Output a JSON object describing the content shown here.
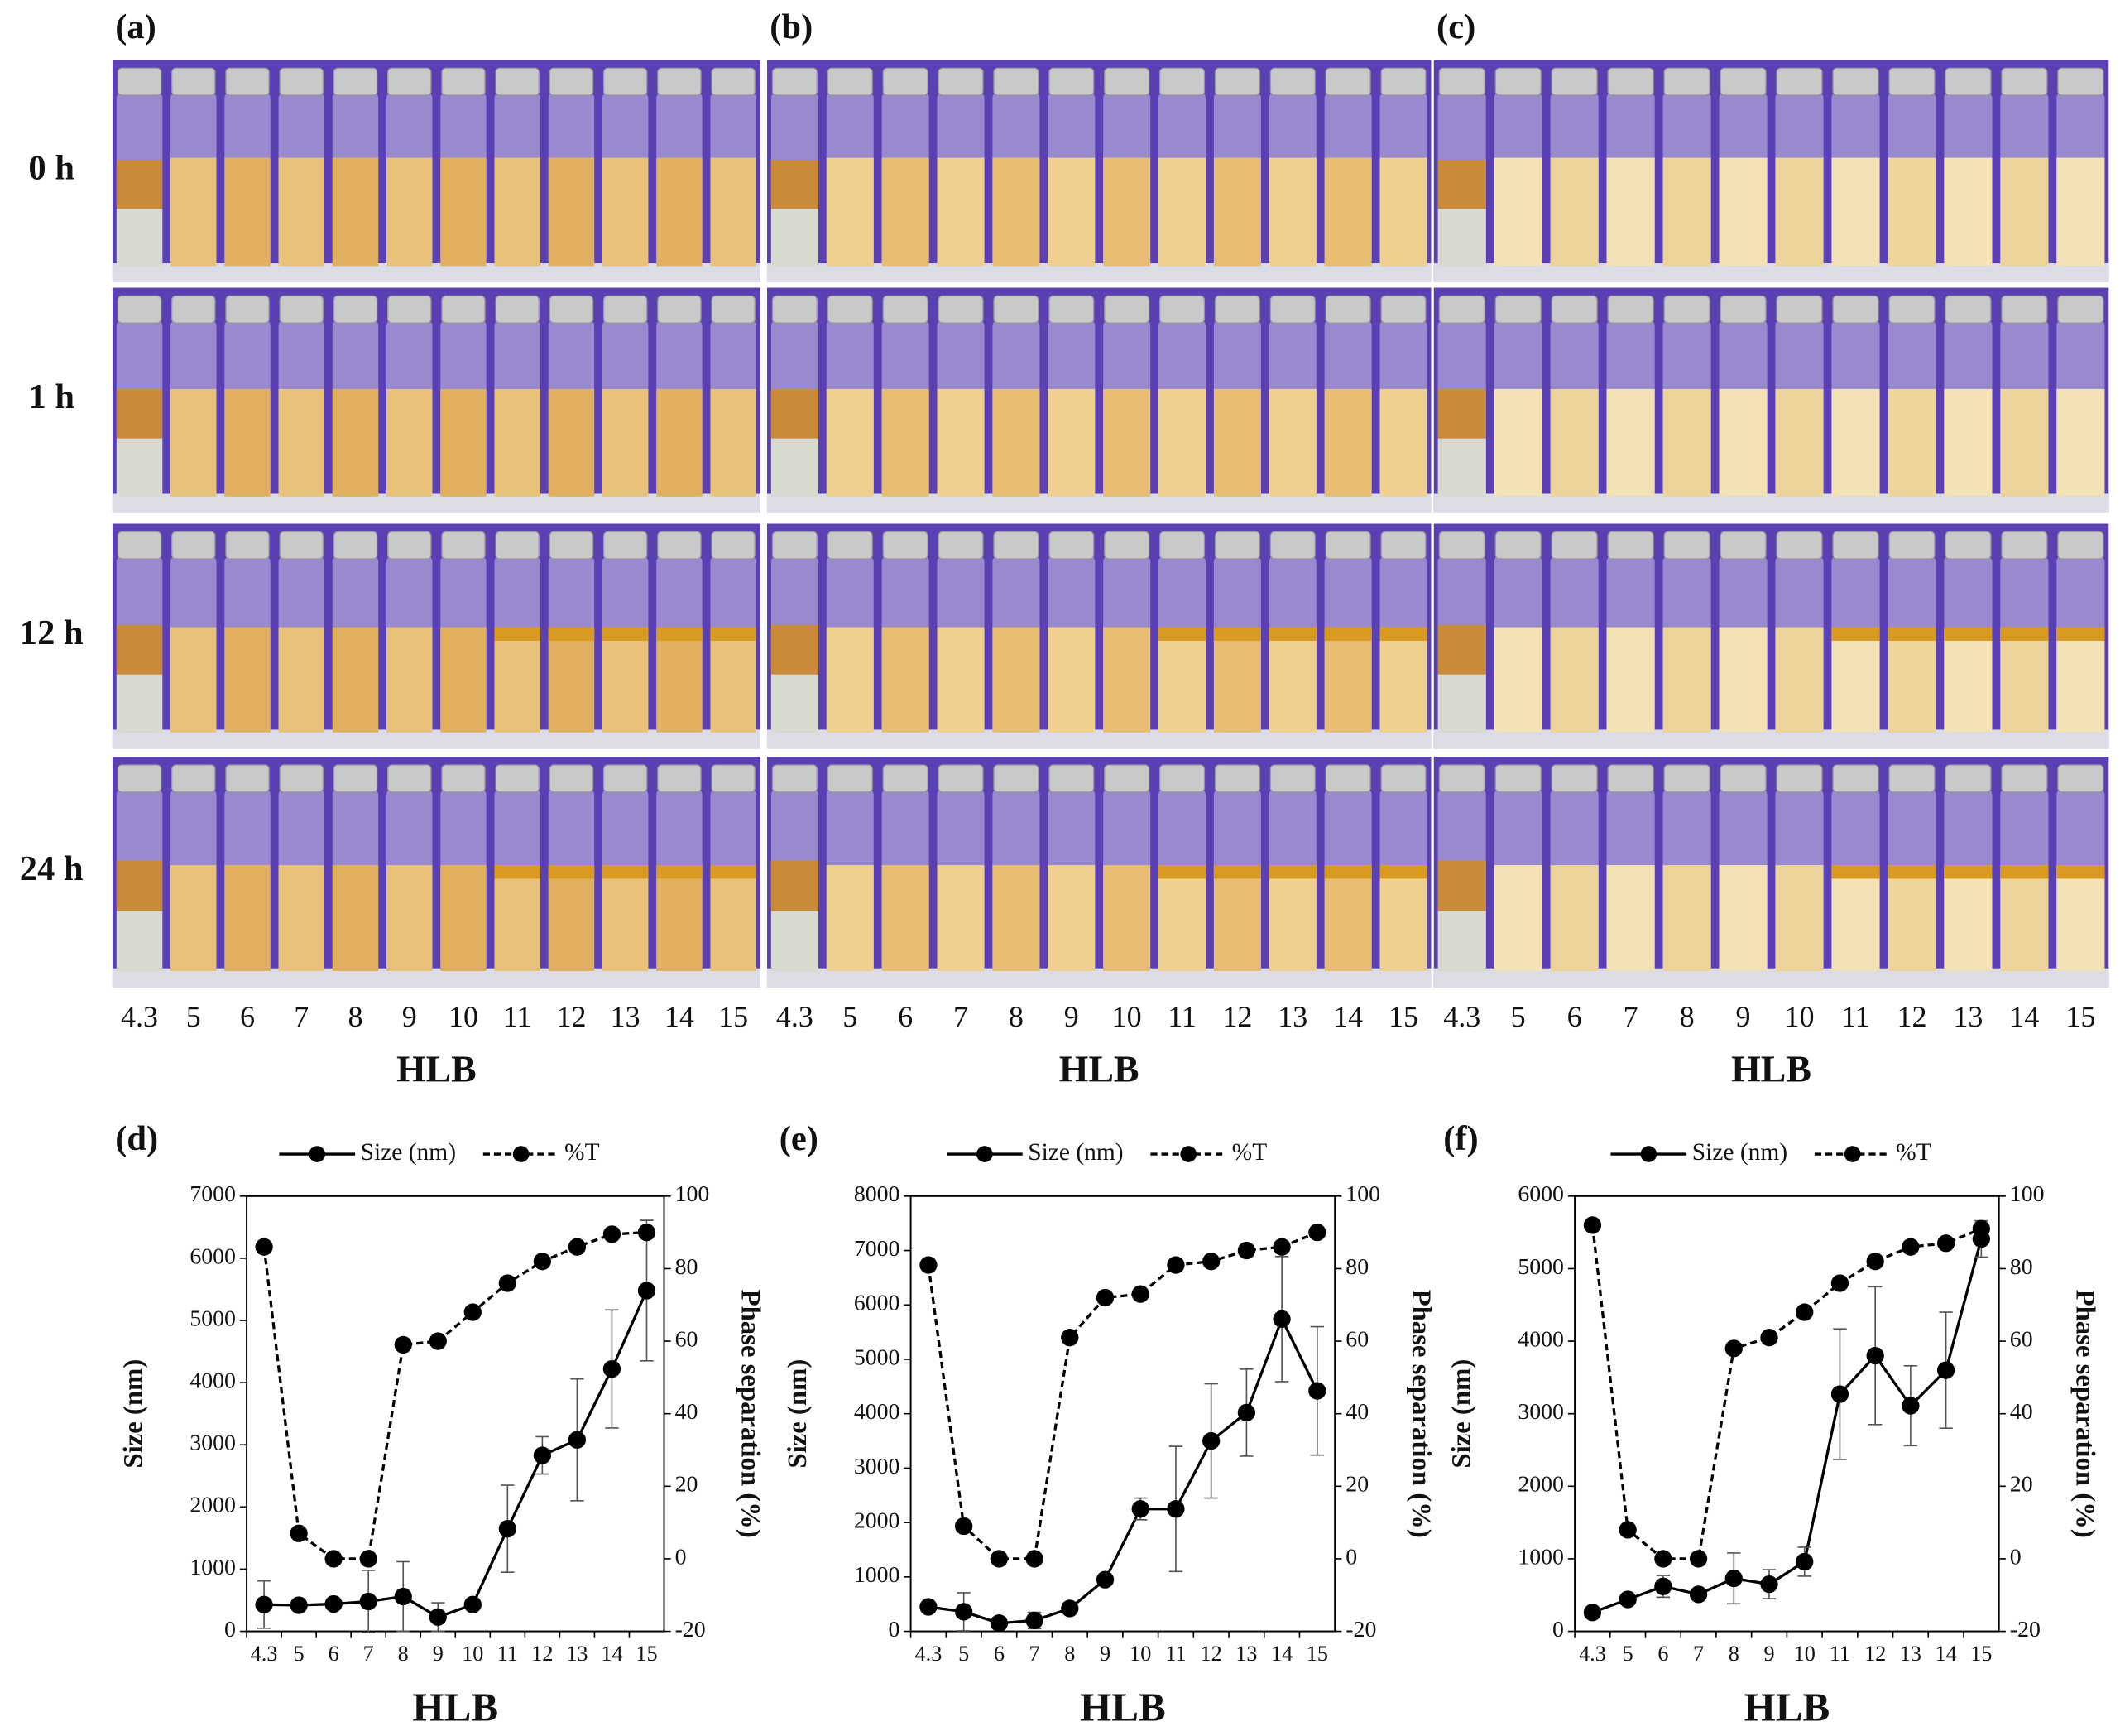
{
  "photos": {
    "panels": [
      "(a)",
      "(b)",
      "(c)"
    ],
    "rows": [
      "0 h",
      "1 h",
      "12 h",
      "24 h"
    ],
    "hlb_labels": [
      "4.3",
      "5",
      "6",
      "7",
      "8",
      "9",
      "10",
      "11",
      "12",
      "13",
      "14",
      "15"
    ],
    "xlabel": "HLB"
  },
  "chart_data": [
    {
      "type": "line",
      "label": "(d)",
      "categories": [
        "4.3",
        "5",
        "6",
        "7",
        "8",
        "9",
        "10",
        "11",
        "12",
        "13",
        "14",
        "15"
      ],
      "xlabel": "HLB",
      "ylabel": "Size (nm)",
      "y2label": "Phase separation (%)",
      "ylim": [
        0,
        7000
      ],
      "yticks": [
        0,
        1000,
        2000,
        3000,
        4000,
        5000,
        6000,
        7000
      ],
      "y2lim": [
        -20,
        100
      ],
      "y2ticks": [
        -20,
        0,
        20,
        40,
        60,
        80,
        100
      ],
      "series": [
        {
          "name": "Size (nm)",
          "color": "#000000",
          "dash": false,
          "values": [
            430,
            420,
            440,
            480,
            560,
            230,
            430,
            1650,
            2830,
            3080,
            4220,
            5480
          ],
          "errors": [
            380,
            30,
            50,
            500,
            560,
            230,
            30,
            700,
            300,
            980,
            950,
            1130
          ]
        },
        {
          "name": "%T",
          "color": "#000000",
          "dash": true,
          "axis": "y2",
          "values": [
            86,
            7,
            0,
            0,
            59,
            60,
            68,
            76,
            82,
            86,
            89.5,
            90
          ]
        }
      ]
    },
    {
      "type": "line",
      "label": "(e)",
      "categories": [
        "4.3",
        "5",
        "6",
        "7",
        "8",
        "9",
        "10",
        "11",
        "12",
        "13",
        "14",
        "15"
      ],
      "xlabel": "HLB",
      "ylabel": "Size (nm)",
      "y2label": "Phase separation (%)",
      "ylim": [
        0,
        8000
      ],
      "yticks": [
        0,
        1000,
        2000,
        3000,
        4000,
        5000,
        6000,
        7000,
        8000
      ],
      "y2lim": [
        -20,
        100
      ],
      "y2ticks": [
        -20,
        0,
        20,
        40,
        60,
        80,
        100
      ],
      "series": [
        {
          "name": "Size (nm)",
          "color": "#000000",
          "dash": false,
          "values": [
            450,
            360,
            150,
            200,
            420,
            950,
            2250,
            2250,
            3500,
            4020,
            5740,
            4420
          ],
          "errors": [
            50,
            350,
            100,
            150,
            80,
            50,
            200,
            1150,
            1050,
            800,
            1150,
            1180
          ]
        },
        {
          "name": "%T",
          "color": "#000000",
          "dash": true,
          "axis": "y2",
          "values": [
            81,
            9,
            0,
            0,
            61,
            72,
            73,
            81,
            82,
            85,
            86,
            90
          ]
        }
      ]
    },
    {
      "type": "line",
      "label": "(f)",
      "categories": [
        "4.3",
        "5",
        "6",
        "7",
        "8",
        "9",
        "10",
        "11",
        "12",
        "13",
        "14",
        "15"
      ],
      "xlabel": "HLB",
      "ylabel": "Size (nm)",
      "y2label": "Phase separation (%)",
      "ylim": [
        0,
        6000
      ],
      "yticks": [
        0,
        1000,
        2000,
        3000,
        4000,
        5000,
        6000
      ],
      "y2lim": [
        -20,
        100
      ],
      "y2ticks": [
        -20,
        0,
        20,
        40,
        60,
        80,
        100
      ],
      "series": [
        {
          "name": "Size (nm)",
          "color": "#000000",
          "dash": false,
          "values": [
            260,
            440,
            620,
            510,
            730,
            650,
            960,
            3270,
            3800,
            3110,
            3600,
            5410
          ],
          "errors": [
            30,
            50,
            150,
            50,
            350,
            200,
            200,
            900,
            950,
            550,
            800,
            250
          ]
        },
        {
          "name": "%T",
          "color": "#000000",
          "dash": true,
          "axis": "y2",
          "values": [
            92,
            8,
            0,
            0,
            58,
            61,
            68,
            76,
            82,
            86,
            87,
            91
          ]
        }
      ]
    }
  ]
}
